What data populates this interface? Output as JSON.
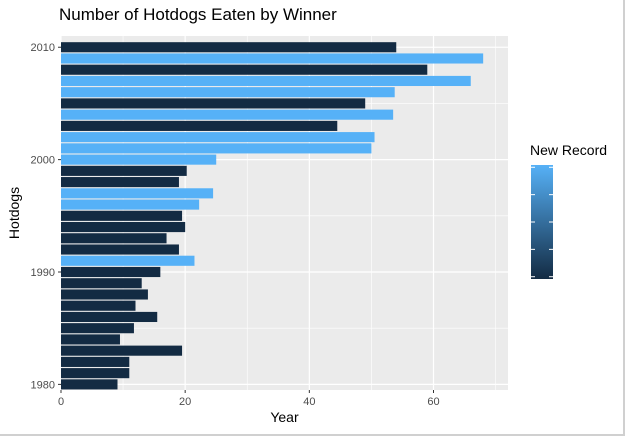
{
  "chart_data": {
    "type": "bar",
    "orientation": "horizontal",
    "title": "Number of Hotdogs Eaten by Winner",
    "xlabel": "Year",
    "ylabel": "Hotdogs",
    "xlim": [
      0,
      72
    ],
    "x_ticks": [
      "0",
      "20",
      "40",
      "60"
    ],
    "y_ticks": [
      "1980",
      "1990",
      "2000",
      "2010"
    ],
    "ylim": [
      1979.5,
      2011
    ],
    "legend": {
      "title": "New Record",
      "type": "colorbar",
      "placement": "right",
      "low_color": "#132B43",
      "high_color": "#56B1F7"
    },
    "grid": true,
    "colors": {
      "no_record": "#132B43",
      "new_record": "#56B1F7",
      "panel": "#EBEBEB",
      "grid": "#FFFFFF"
    },
    "data": [
      {
        "year": 1980,
        "value": 9.1,
        "new_record": 0
      },
      {
        "year": 1981,
        "value": 11,
        "new_record": 0
      },
      {
        "year": 1982,
        "value": 11,
        "new_record": 0
      },
      {
        "year": 1983,
        "value": 19.5,
        "new_record": 0
      },
      {
        "year": 1984,
        "value": 9.5,
        "new_record": 0
      },
      {
        "year": 1985,
        "value": 11.75,
        "new_record": 0
      },
      {
        "year": 1986,
        "value": 15.5,
        "new_record": 0
      },
      {
        "year": 1987,
        "value": 12,
        "new_record": 0
      },
      {
        "year": 1988,
        "value": 14,
        "new_record": 0
      },
      {
        "year": 1989,
        "value": 13,
        "new_record": 0
      },
      {
        "year": 1990,
        "value": 16,
        "new_record": 0
      },
      {
        "year": 1991,
        "value": 21.5,
        "new_record": 1
      },
      {
        "year": 1992,
        "value": 19,
        "new_record": 0
      },
      {
        "year": 1993,
        "value": 17,
        "new_record": 0
      },
      {
        "year": 1994,
        "value": 20,
        "new_record": 0
      },
      {
        "year": 1995,
        "value": 19.5,
        "new_record": 0
      },
      {
        "year": 1996,
        "value": 22.25,
        "new_record": 1
      },
      {
        "year": 1997,
        "value": 24.5,
        "new_record": 1
      },
      {
        "year": 1998,
        "value": 19,
        "new_record": 0
      },
      {
        "year": 1999,
        "value": 20.25,
        "new_record": 0
      },
      {
        "year": 2000,
        "value": 25,
        "new_record": 1
      },
      {
        "year": 2001,
        "value": 50,
        "new_record": 1
      },
      {
        "year": 2002,
        "value": 50.5,
        "new_record": 1
      },
      {
        "year": 2003,
        "value": 44.5,
        "new_record": 0
      },
      {
        "year": 2004,
        "value": 53.5,
        "new_record": 1
      },
      {
        "year": 2005,
        "value": 49,
        "new_record": 0
      },
      {
        "year": 2006,
        "value": 53.75,
        "new_record": 1
      },
      {
        "year": 2007,
        "value": 66,
        "new_record": 1
      },
      {
        "year": 2008,
        "value": 59,
        "new_record": 0
      },
      {
        "year": 2009,
        "value": 68,
        "new_record": 1
      },
      {
        "year": 2010,
        "value": 54,
        "new_record": 0
      }
    ]
  }
}
